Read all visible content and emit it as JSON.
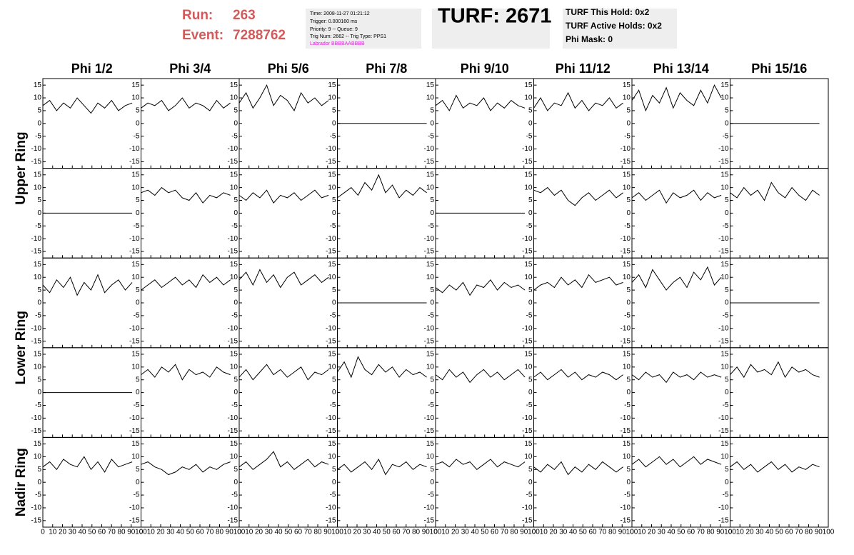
{
  "header": {
    "run_label": "Run:",
    "run": "263",
    "event_label": "Event:",
    "event": "7288762",
    "info": [
      "Time: 2008-11-27 01:21:12",
      "Trigger: 0.000160 ms",
      "Priority: 9 -- Queue: 9",
      "Trig Num: 2662 -- Trig Type: PPS1"
    ],
    "labrador": "Labrador BBBBAABBBB",
    "turf": "TURF: 2671",
    "holds": [
      "TURF This Hold: 0x2",
      "TURF Active Holds: 0x2",
      "Phi Mask: 0"
    ]
  },
  "chart_data": {
    "type": "line",
    "columns": [
      "Phi 1/2",
      "Phi 3/4",
      "Phi 5/6",
      "Phi 7/8",
      "Phi 9/10",
      "Phi 11/12",
      "Phi 13/14",
      "Phi 15/16"
    ],
    "ring_labels": [
      "Upper Ring",
      "Lower Ring",
      "Nadir Ring"
    ],
    "xlim": [
      0,
      100
    ],
    "ylim": [
      -17,
      17
    ],
    "xticks": [
      0,
      10,
      20,
      30,
      40,
      50,
      60,
      70,
      80,
      90,
      100
    ],
    "yticks": [
      -15,
      -10,
      -5,
      0,
      5,
      10,
      15
    ],
    "color": "#000000",
    "x": [
      0,
      7,
      14,
      21,
      28,
      35,
      42,
      49,
      56,
      63,
      70,
      77,
      84,
      91
    ],
    "rows": [
      [
        [
          7,
          9,
          5,
          8,
          6,
          10,
          7,
          4,
          8,
          6,
          9,
          5,
          7,
          8
        ],
        [
          6,
          8,
          7,
          9,
          5,
          7,
          10,
          6,
          8,
          7,
          5,
          9,
          6,
          8
        ],
        [
          8,
          12,
          6,
          10,
          15,
          7,
          11,
          9,
          5,
          12,
          8,
          10,
          7,
          9
        ],
        [
          0,
          0,
          0,
          0,
          0,
          0,
          0,
          0,
          0,
          0,
          0,
          0,
          0,
          0
        ],
        [
          7,
          9,
          5,
          11,
          6,
          8,
          7,
          10,
          5,
          8,
          6,
          9,
          7,
          6
        ],
        [
          6,
          10,
          5,
          8,
          7,
          12,
          6,
          9,
          5,
          8,
          7,
          10,
          6,
          8
        ],
        [
          9,
          13,
          5,
          11,
          8,
          14,
          6,
          12,
          9,
          7,
          13,
          8,
          15,
          10
        ],
        [
          0,
          0,
          0,
          0,
          0,
          0,
          0,
          0,
          0,
          0,
          0,
          0,
          0,
          0
        ]
      ],
      [
        [
          0,
          0,
          0,
          0,
          0,
          0,
          0,
          0,
          0,
          0,
          0,
          0,
          0,
          0
        ],
        [
          8,
          9,
          7,
          10,
          8,
          9,
          6,
          5,
          8,
          4,
          7,
          6,
          8,
          7
        ],
        [
          7,
          5,
          8,
          6,
          9,
          4,
          7,
          6,
          8,
          5,
          7,
          9,
          6,
          7
        ],
        [
          6,
          8,
          10,
          7,
          12,
          9,
          15,
          8,
          11,
          6,
          9,
          7,
          10,
          8
        ],
        [
          0,
          0,
          0,
          0,
          0,
          0,
          0,
          0,
          0,
          0,
          0,
          0,
          0,
          0
        ],
        [
          9,
          8,
          10,
          7,
          9,
          5,
          3,
          6,
          8,
          5,
          7,
          9,
          6,
          8
        ],
        [
          6,
          8,
          5,
          7,
          9,
          4,
          8,
          6,
          7,
          9,
          5,
          8,
          6,
          7
        ],
        [
          8,
          6,
          10,
          7,
          9,
          5,
          12,
          8,
          6,
          10,
          7,
          5,
          9,
          7
        ]
      ],
      [
        [
          7,
          4,
          9,
          6,
          10,
          3,
          8,
          5,
          11,
          4,
          7,
          9,
          5,
          8
        ],
        [
          5,
          7,
          9,
          6,
          8,
          10,
          7,
          9,
          6,
          11,
          8,
          10,
          7,
          9
        ],
        [
          9,
          12,
          7,
          13,
          8,
          11,
          6,
          10,
          12,
          7,
          9,
          11,
          8,
          10
        ],
        [
          0,
          0,
          0,
          0,
          0,
          0,
          0,
          0,
          0,
          0,
          0,
          0,
          0,
          0
        ],
        [
          6,
          4,
          7,
          5,
          8,
          3,
          7,
          6,
          9,
          5,
          8,
          6,
          7,
          5
        ],
        [
          5,
          7,
          8,
          6,
          10,
          7,
          9,
          6,
          11,
          8,
          9,
          10,
          7,
          8
        ],
        [
          8,
          11,
          6,
          13,
          9,
          5,
          8,
          10,
          6,
          12,
          9,
          14,
          7,
          10
        ],
        [
          0,
          0,
          0,
          0,
          0,
          0,
          0,
          0,
          0,
          0,
          0,
          0,
          0,
          0
        ]
      ],
      [
        [
          0,
          0,
          0,
          0,
          0,
          0,
          0,
          0,
          0,
          0,
          0,
          0,
          0,
          0
        ],
        [
          7,
          9,
          6,
          10,
          8,
          11,
          5,
          9,
          7,
          8,
          6,
          10,
          8,
          7
        ],
        [
          6,
          9,
          5,
          8,
          11,
          7,
          9,
          6,
          8,
          10,
          5,
          8,
          7,
          9
        ],
        [
          8,
          12,
          6,
          14,
          9,
          7,
          11,
          8,
          10,
          6,
          9,
          7,
          8,
          6
        ],
        [
          7,
          5,
          9,
          6,
          8,
          4,
          7,
          9,
          6,
          8,
          5,
          7,
          9,
          6
        ],
        [
          6,
          8,
          5,
          7,
          9,
          6,
          8,
          5,
          7,
          6,
          8,
          7,
          5,
          7
        ],
        [
          7,
          5,
          8,
          6,
          7,
          4,
          8,
          6,
          7,
          5,
          8,
          6,
          7,
          6
        ],
        [
          7,
          10,
          6,
          11,
          8,
          9,
          7,
          12,
          6,
          10,
          8,
          9,
          7,
          6
        ]
      ],
      [
        [
          6,
          8,
          5,
          9,
          7,
          6,
          10,
          5,
          8,
          4,
          9,
          6,
          7,
          8
        ],
        [
          7,
          8,
          6,
          5,
          3,
          4,
          6,
          5,
          7,
          4,
          6,
          5,
          7,
          8
        ],
        [
          6,
          8,
          5,
          7,
          9,
          12,
          6,
          8,
          5,
          7,
          9,
          6,
          8,
          7
        ],
        [
          5,
          7,
          4,
          6,
          8,
          5,
          9,
          3,
          7,
          6,
          8,
          5,
          7,
          6
        ],
        [
          7,
          8,
          6,
          9,
          7,
          8,
          5,
          7,
          9,
          6,
          8,
          7,
          6,
          8
        ],
        [
          6,
          4,
          7,
          5,
          8,
          3,
          6,
          4,
          7,
          5,
          8,
          6,
          4,
          6
        ],
        [
          7,
          9,
          6,
          8,
          10,
          7,
          9,
          6,
          8,
          10,
          7,
          9,
          8,
          7
        ],
        [
          6,
          8,
          5,
          7,
          4,
          6,
          8,
          5,
          7,
          4,
          6,
          5,
          7,
          6
        ]
      ]
    ]
  }
}
